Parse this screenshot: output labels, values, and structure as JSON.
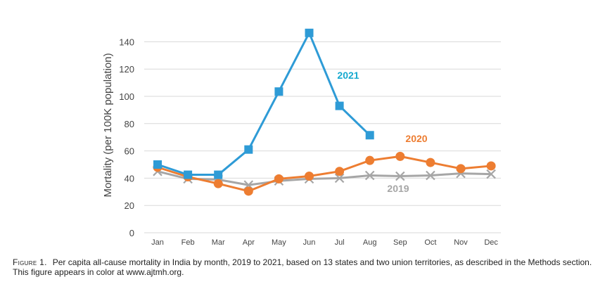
{
  "chart_data": {
    "type": "line",
    "title": "",
    "xlabel": "",
    "ylabel": "Mortality (per 100K population)",
    "ylim": [
      0,
      150
    ],
    "yticks": [
      0,
      20,
      40,
      60,
      80,
      100,
      120,
      140
    ],
    "grid": true,
    "categories": [
      "Jan",
      "Feb",
      "Mar",
      "Apr",
      "May",
      "Jun",
      "Jul",
      "Aug",
      "Sep",
      "Oct",
      "Nov",
      "Dec"
    ],
    "series": [
      {
        "name": "2019",
        "color": "#a6a6a6",
        "marker": "x",
        "values": [
          45,
          39.5,
          39,
          35,
          38,
          39.5,
          40,
          42,
          41.5,
          42,
          43.5,
          43
        ]
      },
      {
        "name": "2020",
        "color": "#ed7d31",
        "marker": "circle",
        "values": [
          48,
          41,
          36,
          30.5,
          39.5,
          41.5,
          45,
          53,
          56,
          51.5,
          47,
          49
        ]
      },
      {
        "name": "2021",
        "color": "#2e9bd6",
        "label_color": "#16a9cf",
        "marker": "square",
        "values": [
          50,
          42.5,
          42.5,
          61,
          103.5,
          146.5,
          93,
          71.5,
          null,
          null,
          null,
          null
        ]
      }
    ]
  },
  "caption": {
    "label": "Figure 1.",
    "text": "Per capita all-cause mortality in India by month, 2019 to 2021, based on 13 states and two union territories, as described in the Methods section. This figure appears in color at www.ajtmh.org."
  }
}
